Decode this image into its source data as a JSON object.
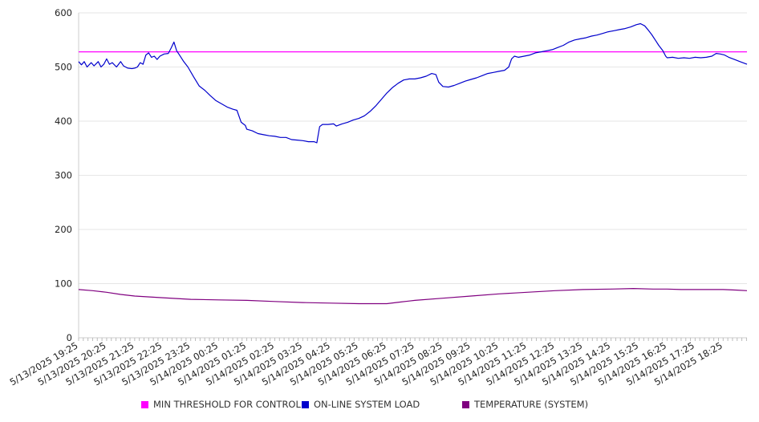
{
  "chart_data": {
    "type": "line",
    "x_tick_labels": [
      "5/13/2025 19:25",
      "5/13/2025 20:25",
      "5/13/2025 21:25",
      "5/13/2025 22:25",
      "5/13/2025 23:25",
      "5/14/2025 00:25",
      "5/14/2025 01:25",
      "5/14/2025 02:25",
      "5/14/2025 03:25",
      "5/14/2025 04:25",
      "5/14/2025 05:25",
      "5/14/2025 06:25",
      "5/14/2025 07:25",
      "5/14/2025 08:25",
      "5/14/2025 09:25",
      "5/14/2025 10:25",
      "5/14/2025 11:25",
      "5/14/2025 12:25",
      "5/14/2025 13:25",
      "5/14/2025 14:25",
      "5/14/2025 15:25",
      "5/14/2025 16:25",
      "5/14/2025 17:25",
      "5/14/2025 18:25"
    ],
    "y_ticks": [
      0,
      100,
      200,
      300,
      400,
      500,
      600
    ],
    "ylim": [
      0,
      600
    ],
    "x_range_hours": [
      0,
      23.85
    ],
    "grid": "horizontal",
    "legend_position": "bottom",
    "series": [
      {
        "name": "MIN THRESHOLD FOR CONTROL",
        "color": "#ff00ff",
        "style": "line",
        "points": [
          [
            0,
            528
          ],
          [
            23.85,
            528
          ]
        ]
      },
      {
        "name": "ON-LINE SYSTEM LOAD",
        "color": "#0000cc",
        "style": "line",
        "points": [
          [
            0,
            510
          ],
          [
            0.1,
            504
          ],
          [
            0.2,
            510
          ],
          [
            0.3,
            500
          ],
          [
            0.45,
            508
          ],
          [
            0.55,
            502
          ],
          [
            0.7,
            510
          ],
          [
            0.8,
            500
          ],
          [
            0.9,
            505
          ],
          [
            1.0,
            515
          ],
          [
            1.1,
            505
          ],
          [
            1.2,
            508
          ],
          [
            1.35,
            500
          ],
          [
            1.5,
            510
          ],
          [
            1.6,
            502
          ],
          [
            1.75,
            498
          ],
          [
            1.9,
            497
          ],
          [
            2.0,
            498
          ],
          [
            2.1,
            500
          ],
          [
            2.2,
            508
          ],
          [
            2.3,
            505
          ],
          [
            2.4,
            522
          ],
          [
            2.5,
            526
          ],
          [
            2.6,
            518
          ],
          [
            2.7,
            520
          ],
          [
            2.8,
            514
          ],
          [
            2.9,
            520
          ],
          [
            3.05,
            524
          ],
          [
            3.2,
            525
          ],
          [
            3.3,
            535
          ],
          [
            3.4,
            546
          ],
          [
            3.5,
            530
          ],
          [
            3.6,
            522
          ],
          [
            3.75,
            510
          ],
          [
            3.9,
            500
          ],
          [
            4.1,
            482
          ],
          [
            4.3,
            465
          ],
          [
            4.5,
            457
          ],
          [
            4.7,
            447
          ],
          [
            4.9,
            438
          ],
          [
            5.1,
            432
          ],
          [
            5.3,
            426
          ],
          [
            5.5,
            422
          ],
          [
            5.65,
            420
          ],
          [
            5.8,
            398
          ],
          [
            5.95,
            392
          ],
          [
            6.0,
            385
          ],
          [
            6.2,
            382
          ],
          [
            6.4,
            377
          ],
          [
            6.6,
            375
          ],
          [
            6.8,
            373
          ],
          [
            7.0,
            372
          ],
          [
            7.2,
            370
          ],
          [
            7.4,
            370
          ],
          [
            7.6,
            366
          ],
          [
            7.8,
            365
          ],
          [
            8.0,
            364
          ],
          [
            8.2,
            362
          ],
          [
            8.4,
            362
          ],
          [
            8.5,
            360
          ],
          [
            8.6,
            390
          ],
          [
            8.7,
            394
          ],
          [
            8.9,
            394
          ],
          [
            9.1,
            395
          ],
          [
            9.2,
            391
          ],
          [
            9.4,
            395
          ],
          [
            9.6,
            398
          ],
          [
            9.8,
            402
          ],
          [
            10.0,
            405
          ],
          [
            10.2,
            410
          ],
          [
            10.4,
            418
          ],
          [
            10.6,
            428
          ],
          [
            10.8,
            440
          ],
          [
            11.0,
            452
          ],
          [
            11.2,
            462
          ],
          [
            11.4,
            470
          ],
          [
            11.6,
            476
          ],
          [
            11.8,
            478
          ],
          [
            12.0,
            478
          ],
          [
            12.2,
            480
          ],
          [
            12.4,
            483
          ],
          [
            12.6,
            488
          ],
          [
            12.75,
            486
          ],
          [
            12.85,
            472
          ],
          [
            13.0,
            464
          ],
          [
            13.2,
            463
          ],
          [
            13.4,
            466
          ],
          [
            13.6,
            470
          ],
          [
            13.8,
            474
          ],
          [
            14.0,
            477
          ],
          [
            14.2,
            480
          ],
          [
            14.4,
            484
          ],
          [
            14.6,
            488
          ],
          [
            14.8,
            490
          ],
          [
            15.0,
            492
          ],
          [
            15.2,
            494
          ],
          [
            15.35,
            500
          ],
          [
            15.45,
            515
          ],
          [
            15.55,
            520
          ],
          [
            15.7,
            518
          ],
          [
            15.9,
            520
          ],
          [
            16.1,
            522
          ],
          [
            16.3,
            526
          ],
          [
            16.5,
            528
          ],
          [
            16.7,
            530
          ],
          [
            16.9,
            532
          ],
          [
            17.1,
            536
          ],
          [
            17.3,
            540
          ],
          [
            17.5,
            546
          ],
          [
            17.7,
            550
          ],
          [
            17.9,
            552
          ],
          [
            18.1,
            554
          ],
          [
            18.3,
            557
          ],
          [
            18.5,
            559
          ],
          [
            18.7,
            562
          ],
          [
            18.9,
            565
          ],
          [
            19.1,
            567
          ],
          [
            19.3,
            569
          ],
          [
            19.5,
            571
          ],
          [
            19.7,
            574
          ],
          [
            19.9,
            578
          ],
          [
            20.05,
            580
          ],
          [
            20.2,
            576
          ],
          [
            20.3,
            570
          ],
          [
            20.45,
            560
          ],
          [
            20.6,
            548
          ],
          [
            20.7,
            540
          ],
          [
            20.85,
            530
          ],
          [
            20.95,
            520
          ],
          [
            21.0,
            517
          ],
          [
            21.2,
            518
          ],
          [
            21.4,
            516
          ],
          [
            21.6,
            517
          ],
          [
            21.8,
            516
          ],
          [
            22.0,
            518
          ],
          [
            22.2,
            517
          ],
          [
            22.4,
            518
          ],
          [
            22.6,
            520
          ],
          [
            22.75,
            525
          ],
          [
            22.9,
            524
          ],
          [
            23.05,
            522
          ],
          [
            23.2,
            518
          ],
          [
            23.4,
            514
          ],
          [
            23.6,
            510
          ],
          [
            23.85,
            505
          ]
        ]
      },
      {
        "name": "TEMPERATURE (SYSTEM)",
        "color": "#800080",
        "style": "line",
        "points": [
          [
            0,
            89
          ],
          [
            0.5,
            87
          ],
          [
            1.0,
            84
          ],
          [
            1.5,
            80
          ],
          [
            2.0,
            77
          ],
          [
            3.0,
            74
          ],
          [
            4.0,
            71
          ],
          [
            5.0,
            70
          ],
          [
            6.0,
            69
          ],
          [
            7.0,
            67
          ],
          [
            8.0,
            65
          ],
          [
            9.0,
            64
          ],
          [
            10.0,
            63
          ],
          [
            11.0,
            63
          ],
          [
            11.5,
            66
          ],
          [
            12.0,
            69
          ],
          [
            13.0,
            73
          ],
          [
            14.0,
            77
          ],
          [
            15.0,
            81
          ],
          [
            16.0,
            84
          ],
          [
            17.0,
            87
          ],
          [
            18.0,
            89
          ],
          [
            19.0,
            90
          ],
          [
            19.8,
            91
          ],
          [
            20.5,
            90
          ],
          [
            21.0,
            90
          ],
          [
            21.5,
            89
          ],
          [
            22.0,
            89
          ],
          [
            22.5,
            89
          ],
          [
            23.0,
            89
          ],
          [
            23.5,
            88
          ],
          [
            23.85,
            87
          ]
        ]
      }
    ]
  }
}
